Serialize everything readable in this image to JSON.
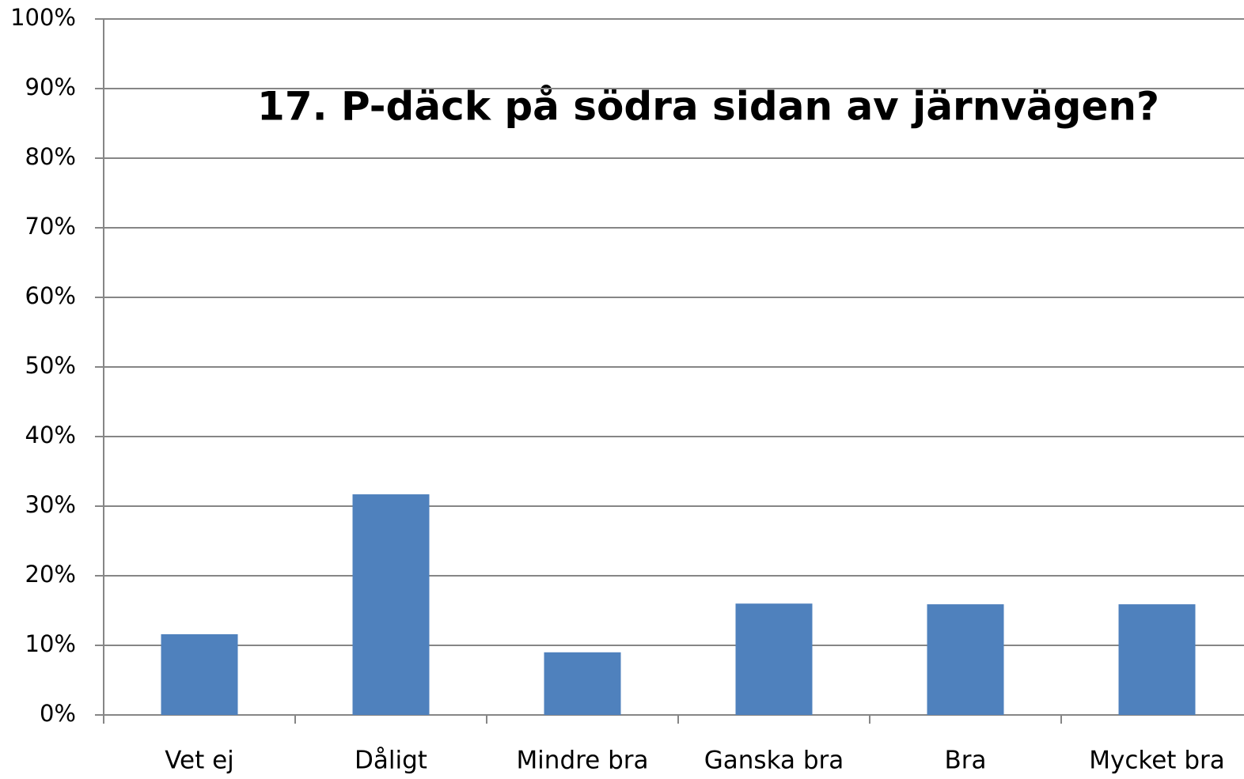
{
  "chart_data": {
    "type": "bar",
    "title": "17. P-däck på södra sidan av järnvägen?",
    "categories": [
      "Vet ej",
      "Dåligt",
      "Mindre bra",
      "Ganska bra",
      "Bra",
      "Mycket bra"
    ],
    "values": [
      11.6,
      31.7,
      9.0,
      16.0,
      15.9,
      15.9
    ],
    "color": "#4f81bd",
    "ylim": [
      0,
      100
    ],
    "yticks": [
      {
        "value": 0,
        "label": "0%"
      },
      {
        "value": 10,
        "label": "10%"
      },
      {
        "value": 20,
        "label": "20%"
      },
      {
        "value": 30,
        "label": "30%"
      },
      {
        "value": 40,
        "label": "40%"
      },
      {
        "value": 50,
        "label": "50%"
      },
      {
        "value": 60,
        "label": "60%"
      },
      {
        "value": 70,
        "label": "70%"
      },
      {
        "value": 80,
        "label": "80%"
      },
      {
        "value": 90,
        "label": "90%"
      },
      {
        "value": 100,
        "label": "100%"
      }
    ],
    "grid": true
  }
}
